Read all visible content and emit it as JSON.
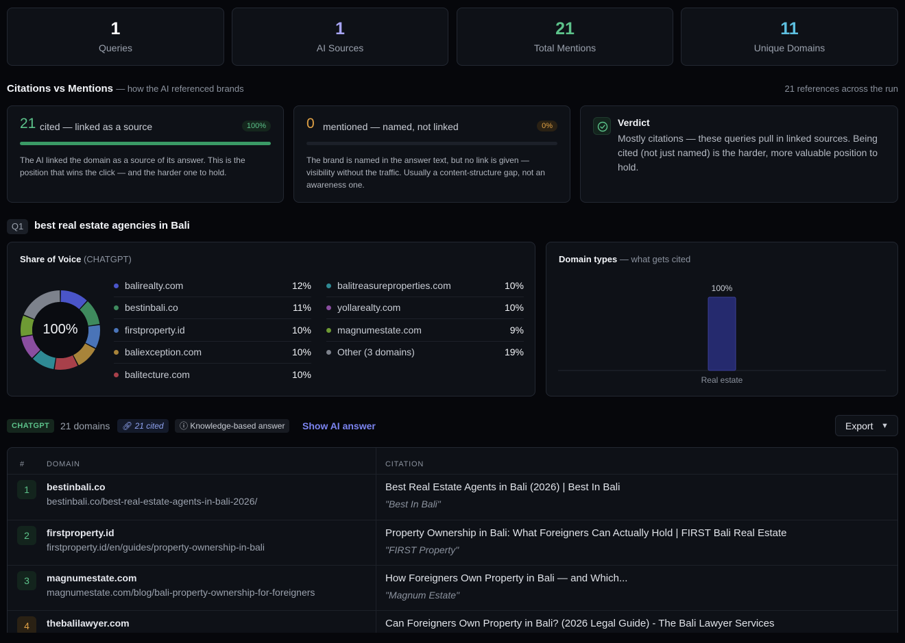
{
  "stats": [
    {
      "value": "1",
      "label": "Queries",
      "color": "#ffffff"
    },
    {
      "value": "1",
      "label": "AI Sources",
      "color": "#a7a4f5"
    },
    {
      "value": "21",
      "label": "Total Mentions",
      "color": "#5cc28a"
    },
    {
      "value": "11",
      "label": "Unique Domains",
      "color": "#5dc0e0"
    }
  ],
  "citations": {
    "title": "Citations vs Mentions",
    "subtitle": "— how the AI referenced brands",
    "right_note": "21 references across the run",
    "cited": {
      "count": "21",
      "label": "cited — linked as a source",
      "pill": "100%",
      "fraction": 1.0,
      "desc": "The AI linked the domain as a source of its answer. This is the position that wins the click — and the harder one to hold."
    },
    "mentioned": {
      "count": "0",
      "label": "mentioned — named, not linked",
      "pill": "0%",
      "fraction": 0.0,
      "desc": "The brand is named in the answer text, but no link is given — visibility without the traffic. Usually a content-structure gap, not an awareness one."
    },
    "verdict": {
      "title": "Verdict",
      "text": "Mostly citations — these queries pull in linked sources. Being cited (not just named) is the harder, more valuable position to hold."
    }
  },
  "query": {
    "badge": "Q1",
    "text": "best real estate agencies in Bali"
  },
  "share_of_voice": {
    "title": "Share of Voice",
    "source": "(CHATGPT)",
    "center": "100%",
    "left": [
      {
        "domain": "balirealty.com",
        "pct": "12%",
        "value": 12,
        "color": "#4a55c9"
      },
      {
        "domain": "bestinbali.co",
        "pct": "11%",
        "value": 11,
        "color": "#3f8a5e"
      },
      {
        "domain": "firstproperty.id",
        "pct": "10%",
        "value": 10,
        "color": "#4a74b8"
      },
      {
        "domain": "baliexception.com",
        "pct": "10%",
        "value": 10,
        "color": "#a8843a"
      },
      {
        "domain": "balitecture.com",
        "pct": "10%",
        "value": 10,
        "color": "#a8404a"
      }
    ],
    "right": [
      {
        "domain": "balitreasureproperties.com",
        "pct": "10%",
        "value": 10,
        "color": "#2f8a94"
      },
      {
        "domain": "yollarealty.com",
        "pct": "10%",
        "value": 10,
        "color": "#8a4ea0"
      },
      {
        "domain": "magnumestate.com",
        "pct": "9%",
        "value": 9,
        "color": "#6e9a34"
      },
      {
        "domain": "Other (3 domains)",
        "pct": "19%",
        "value": 19,
        "color": "#7d828c"
      }
    ]
  },
  "domain_types": {
    "title": "Domain types",
    "subtitle": "— what gets cited",
    "chart_data": {
      "type": "bar",
      "categories": [
        "Real estate"
      ],
      "values": [
        100
      ],
      "data_labels": [
        "100%"
      ],
      "ylim": [
        0,
        100
      ]
    }
  },
  "toolbar": {
    "source_tag": "CHATGPT",
    "domains": "21 domains",
    "cited": "21 cited",
    "answer_type": "Knowledge-based answer",
    "show_answer": "Show AI answer",
    "export": "Export"
  },
  "table": {
    "headers": {
      "num": "#",
      "domain": "DOMAIN",
      "citation": "CITATION"
    },
    "rows": [
      {
        "num": "1",
        "domain": "bestinbali.co",
        "url": "bestinbali.co/best-real-estate-agents-in-bali-2026/",
        "citation": "Best Real Estate Agents in Bali (2026) | Best In Bali",
        "source": "\"Best In Bali\""
      },
      {
        "num": "2",
        "domain": "firstproperty.id",
        "url": "firstproperty.id/en/guides/property-ownership-in-bali",
        "citation": "Property Ownership in Bali: What Foreigners Can Actually Hold | FIRST Bali Real Estate",
        "source": "\"FIRST Property\""
      },
      {
        "num": "3",
        "domain": "magnumestate.com",
        "url": "magnumestate.com/blog/bali-property-ownership-for-foreigners",
        "citation": "How Foreigners Own Property in Bali — and Which...",
        "source": "\"Magnum Estate\""
      },
      {
        "num": "4",
        "domain": "thebalilawyer.com",
        "url": "",
        "citation": "Can Foreigners Own Property in Bali? (2026 Legal Guide) - The Bali Lawyer Services",
        "source": ""
      }
    ]
  }
}
